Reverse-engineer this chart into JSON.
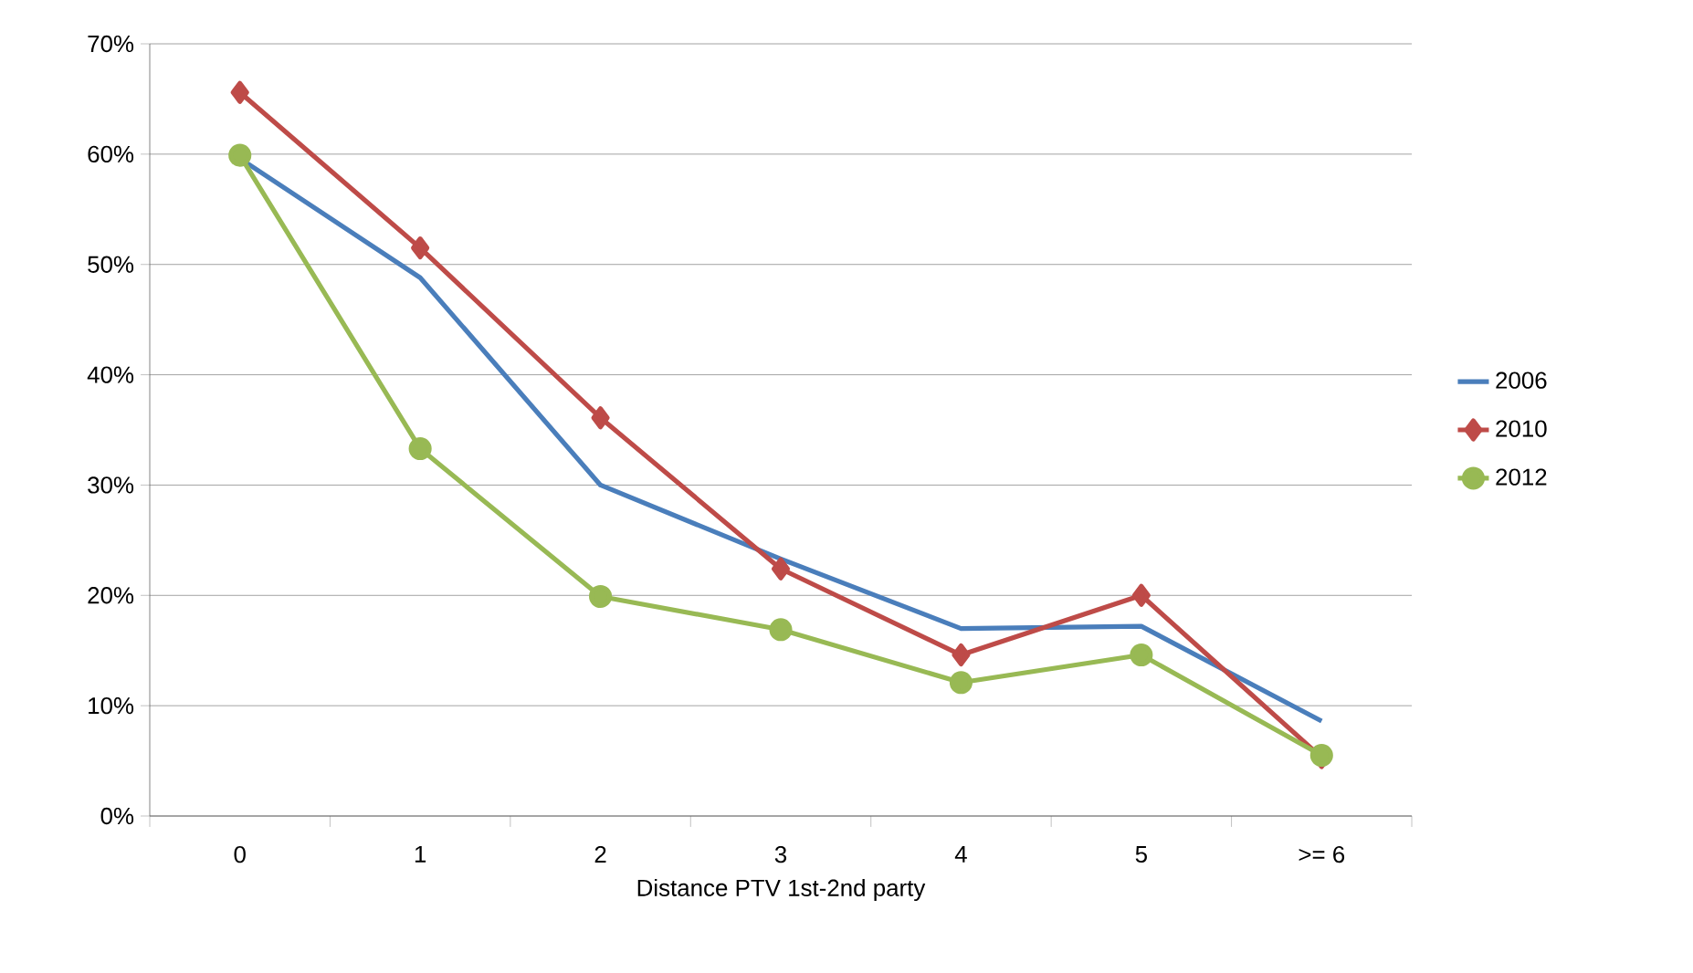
{
  "chart_data": {
    "type": "line",
    "xlabel": "Distance PTV 1st-2nd party",
    "categories": [
      "0",
      "1",
      "2",
      "3",
      "4",
      "5",
      ">= 6"
    ],
    "series": [
      {
        "name": "2006",
        "color": "#4a7ebb",
        "marker": "none",
        "values": [
          59.6,
          48.8,
          30.0,
          23.3,
          17.0,
          17.2,
          8.6
        ]
      },
      {
        "name": "2010",
        "color": "#be4b48",
        "marker": "diamond",
        "values": [
          65.6,
          51.5,
          36.1,
          22.4,
          14.6,
          20.0,
          5.3
        ]
      },
      {
        "name": "2012",
        "color": "#98b954",
        "marker": "circle",
        "values": [
          59.9,
          33.3,
          19.9,
          16.9,
          12.1,
          14.6,
          5.5
        ]
      }
    ],
    "ylim": [
      0,
      70
    ],
    "yticks": [
      {
        "value": 0,
        "label": "0%"
      },
      {
        "value": 10,
        "label": "10%"
      },
      {
        "value": 20,
        "label": "20%"
      },
      {
        "value": 30,
        "label": "30%"
      },
      {
        "value": 40,
        "label": "40%"
      },
      {
        "value": 50,
        "label": "50%"
      },
      {
        "value": 60,
        "label": "60%"
      },
      {
        "value": 70,
        "label": "70%"
      }
    ],
    "grid": "y",
    "legend": "right",
    "line_style": "solid"
  }
}
